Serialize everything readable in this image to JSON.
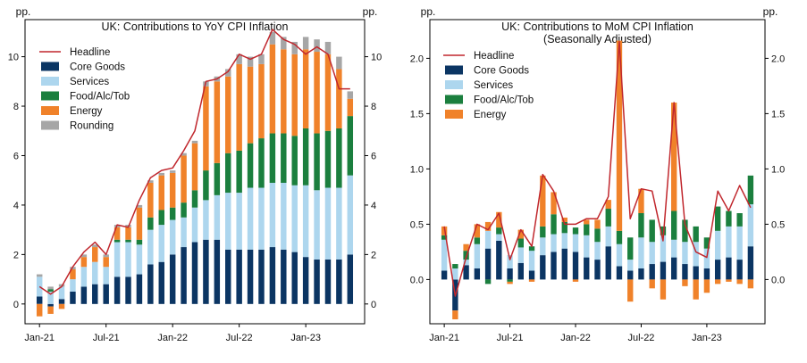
{
  "chart_data": [
    {
      "type": "bar",
      "stacked": true,
      "title": "UK: Contributions to YoY CPI Inflation",
      "subtitle": "",
      "ylabel_left": "pp.",
      "ylabel_right": "pp.",
      "ylim": [
        -0.8,
        11.5
      ],
      "yticks": [
        0,
        2,
        4,
        6,
        8,
        10
      ],
      "xticks": [
        {
          "index": 0,
          "label": "Jan-21"
        },
        {
          "index": 6,
          "label": "Jul-21"
        },
        {
          "index": 12,
          "label": "Jan-22"
        },
        {
          "index": 18,
          "label": "Jul-22"
        },
        {
          "index": 24,
          "label": "Jan-23"
        }
      ],
      "legend_position": "top-left",
      "categories": [
        "Jan-21",
        "Feb-21",
        "Mar-21",
        "Apr-21",
        "May-21",
        "Jun-21",
        "Jul-21",
        "Aug-21",
        "Sep-21",
        "Oct-21",
        "Nov-21",
        "Dec-21",
        "Jan-22",
        "Feb-22",
        "Mar-22",
        "Apr-22",
        "May-22",
        "Jun-22",
        "Jul-22",
        "Aug-22",
        "Sep-22",
        "Oct-22",
        "Nov-22",
        "Dec-22",
        "Jan-23",
        "Feb-23",
        "Mar-23",
        "Apr-23",
        "May-23"
      ],
      "series": [
        {
          "name": "Headline",
          "kind": "line",
          "color": "#c0272d",
          "values": [
            0.7,
            0.4,
            0.7,
            1.5,
            2.1,
            2.5,
            2.0,
            3.2,
            3.1,
            4.2,
            5.1,
            5.4,
            5.5,
            6.2,
            7.0,
            9.0,
            9.1,
            9.4,
            10.1,
            9.9,
            10.1,
            11.1,
            10.7,
            10.5,
            10.1,
            10.4,
            10.1,
            8.7,
            8.7
          ]
        },
        {
          "name": "Core Goods",
          "kind": "bar",
          "color": "#0b3563",
          "values": [
            0.3,
            -0.1,
            0.2,
            0.5,
            0.7,
            0.8,
            0.8,
            1.1,
            1.1,
            1.2,
            1.6,
            1.7,
            2.0,
            2.3,
            2.5,
            2.6,
            2.6,
            2.2,
            2.2,
            2.2,
            2.2,
            2.3,
            2.2,
            2.1,
            1.9,
            1.8,
            1.8,
            1.8,
            2.0
          ]
        },
        {
          "name": "Services",
          "kind": "bar",
          "color": "#add6ee",
          "values": [
            0.8,
            0.5,
            0.5,
            0.5,
            0.8,
            0.9,
            0.7,
            1.4,
            1.4,
            1.2,
            1.4,
            1.5,
            1.4,
            1.2,
            1.4,
            1.6,
            1.8,
            2.3,
            2.3,
            2.5,
            2.5,
            2.6,
            2.7,
            2.7,
            2.9,
            2.8,
            2.9,
            2.9,
            3.2
          ]
        },
        {
          "name": "Food/Alc/Tob",
          "kind": "bar",
          "color": "#1b7f3e",
          "values": [
            0.0,
            0.1,
            0.0,
            0.0,
            0.0,
            0.0,
            0.0,
            0.1,
            0.1,
            0.2,
            0.5,
            0.6,
            0.5,
            0.6,
            0.7,
            1.2,
            1.3,
            1.6,
            1.7,
            1.8,
            2.0,
            2.0,
            2.0,
            2.0,
            2.3,
            2.3,
            2.3,
            2.4,
            2.4
          ]
        },
        {
          "name": "Energy",
          "kind": "bar",
          "color": "#f0822a",
          "values": [
            -0.5,
            -0.3,
            -0.2,
            0.4,
            0.4,
            0.6,
            0.4,
            0.5,
            0.5,
            1.3,
            1.4,
            1.4,
            1.4,
            1.9,
            1.9,
            3.4,
            3.3,
            3.1,
            3.5,
            3.1,
            3.0,
            3.6,
            3.4,
            3.3,
            3.2,
            3.3,
            3.1,
            2.4,
            0.7
          ]
        },
        {
          "name": "Rounding",
          "kind": "bar",
          "color": "#a6a6a6",
          "values": [
            0.1,
            0.1,
            0.1,
            0.1,
            0.1,
            0.1,
            0.1,
            0.1,
            0.1,
            0.1,
            0.1,
            0.1,
            0.1,
            0.1,
            0.1,
            0.2,
            0.2,
            0.3,
            0.4,
            0.4,
            0.4,
            0.5,
            0.5,
            0.5,
            0.5,
            0.5,
            0.5,
            0.5,
            0.3
          ]
        }
      ]
    },
    {
      "type": "bar",
      "stacked": true,
      "title": "UK: Contributions to MoM CPI Inflation",
      "subtitle": "(Seasonally Adjusted)",
      "ylabel_left": "pp.",
      "ylabel_right": "pp.",
      "ylim": [
        -0.4,
        2.35
      ],
      "yticks": [
        0.0,
        0.5,
        1.0,
        1.5,
        2.0
      ],
      "xticks": [
        {
          "index": 0,
          "label": "Jan-21"
        },
        {
          "index": 6,
          "label": "Jul-21"
        },
        {
          "index": 12,
          "label": "Jan-22"
        },
        {
          "index": 18,
          "label": "Jul-22"
        },
        {
          "index": 24,
          "label": "Jan-23"
        }
      ],
      "legend_position": "top-left",
      "categories": [
        "Jan-21",
        "Feb-21",
        "Mar-21",
        "Apr-21",
        "May-21",
        "Jun-21",
        "Jul-21",
        "Aug-21",
        "Sep-21",
        "Oct-21",
        "Nov-21",
        "Dec-21",
        "Jan-22",
        "Feb-22",
        "Mar-22",
        "Apr-22",
        "May-22",
        "Jun-22",
        "Jul-22",
        "Aug-22",
        "Sep-22",
        "Oct-22",
        "Nov-22",
        "Dec-22",
        "Jan-23",
        "Feb-23",
        "Mar-23",
        "Apr-23",
        "May-23"
      ],
      "series": [
        {
          "name": "Headline",
          "kind": "line",
          "color": "#c0272d",
          "values": [
            0.48,
            -0.15,
            0.2,
            0.5,
            0.45,
            0.6,
            0.18,
            0.45,
            0.3,
            0.95,
            0.8,
            0.5,
            0.5,
            0.55,
            0.55,
            0.75,
            2.15,
            0.55,
            0.82,
            0.8,
            0.35,
            1.6,
            0.5,
            0.25,
            0.2,
            0.8,
            0.62,
            0.85,
            0.65
          ]
        },
        {
          "name": "Core Goods",
          "kind": "bar",
          "color": "#0b3563",
          "values": [
            0.08,
            -0.28,
            0.13,
            0.1,
            0.28,
            0.35,
            0.1,
            0.15,
            0.08,
            0.22,
            0.25,
            0.28,
            0.25,
            0.2,
            0.18,
            0.3,
            0.12,
            0.08,
            0.1,
            0.14,
            0.16,
            0.2,
            0.14,
            0.12,
            0.1,
            0.18,
            0.2,
            0.18,
            0.3
          ]
        },
        {
          "name": "Services",
          "kind": "bar",
          "color": "#add6ee",
          "values": [
            0.28,
            0.1,
            0.05,
            0.22,
            0.16,
            0.06,
            0.12,
            0.14,
            0.18,
            0.16,
            0.16,
            0.14,
            0.16,
            0.2,
            0.16,
            0.18,
            0.2,
            0.1,
            0.28,
            0.2,
            0.24,
            0.16,
            0.2,
            0.22,
            0.18,
            0.26,
            0.28,
            0.3,
            0.38
          ]
        },
        {
          "name": "Food/Alc/Tob",
          "kind": "bar",
          "color": "#1b7f3e",
          "values": [
            0.04,
            0.04,
            0.08,
            0.06,
            -0.04,
            0.06,
            -0.02,
            0.08,
            0.04,
            0.1,
            0.18,
            0.1,
            0.06,
            0.1,
            0.12,
            0.16,
            0.12,
            0.2,
            0.22,
            0.2,
            0.08,
            0.26,
            0.2,
            0.14,
            0.1,
            0.22,
            0.14,
            0.12,
            0.26
          ]
        },
        {
          "name": "Energy",
          "kind": "bar",
          "color": "#f0822a",
          "values": [
            0.08,
            -0.08,
            0.06,
            0.12,
            0.08,
            0.14,
            -0.02,
            0.08,
            -0.02,
            0.46,
            0.2,
            0.04,
            -0.02,
            0.04,
            0.08,
            0.08,
            1.72,
            -0.2,
            0.22,
            -0.08,
            -0.18,
            0.98,
            -0.06,
            -0.18,
            -0.12,
            -0.04,
            -0.02,
            -0.04,
            -0.08
          ]
        }
      ]
    }
  ]
}
